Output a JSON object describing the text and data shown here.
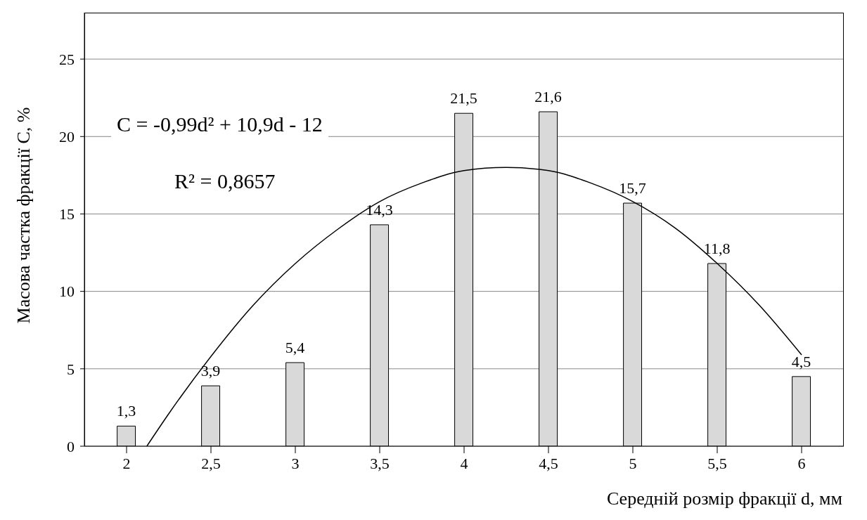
{
  "chart_data": {
    "type": "bar",
    "xlabel": "Середній розмір фракції d, мм",
    "ylabel": "Масова частка фракції С, %",
    "x": [
      2,
      2.5,
      3,
      3.5,
      4,
      4.5,
      5,
      5.5,
      6
    ],
    "xlim": [
      1.75,
      6.25
    ],
    "xticks": [
      2,
      {
        "value": 2.5,
        "label": "2,5"
      },
      3,
      {
        "value": 3.5,
        "label": "3,5"
      },
      4,
      {
        "value": 4.5,
        "label": "4,5"
      },
      5,
      {
        "value": 5.5,
        "label": "5,5"
      },
      6
    ],
    "ylim": [
      0,
      28
    ],
    "yticks": [
      0,
      5,
      10,
      15,
      20,
      25
    ],
    "grid": "y",
    "legend": false,
    "series": [
      {
        "color": "#d9d9d9",
        "values": [
          1.3,
          3.9,
          5.4,
          14.3,
          21.5,
          21.6,
          15.7,
          11.8,
          4.5
        ],
        "value_labels": [
          "1,3",
          "3,9",
          "5,4",
          "14,3",
          "21,5",
          "21,6",
          "15,7",
          "11,8",
          "4,5"
        ]
      },
      {
        "type": "line",
        "color": "#000000",
        "marker": "none",
        "x": [
          2.12,
          2.25,
          2.5,
          2.75,
          3,
          3.25,
          3.5,
          3.75,
          4,
          4.25,
          4.5,
          4.75,
          5,
          5.25,
          5.5,
          5.75,
          6
        ],
        "values": [
          0,
          2.1,
          5.8,
          9.1,
          11.8,
          14,
          15.8,
          17,
          17.8,
          18,
          17.8,
          17,
          15.8,
          14.1,
          11.8,
          9.1,
          5.9
        ]
      }
    ],
    "annotations": [
      "C = -0,99d² + 10,9d - 12",
      "R² = 0,8657"
    ]
  }
}
